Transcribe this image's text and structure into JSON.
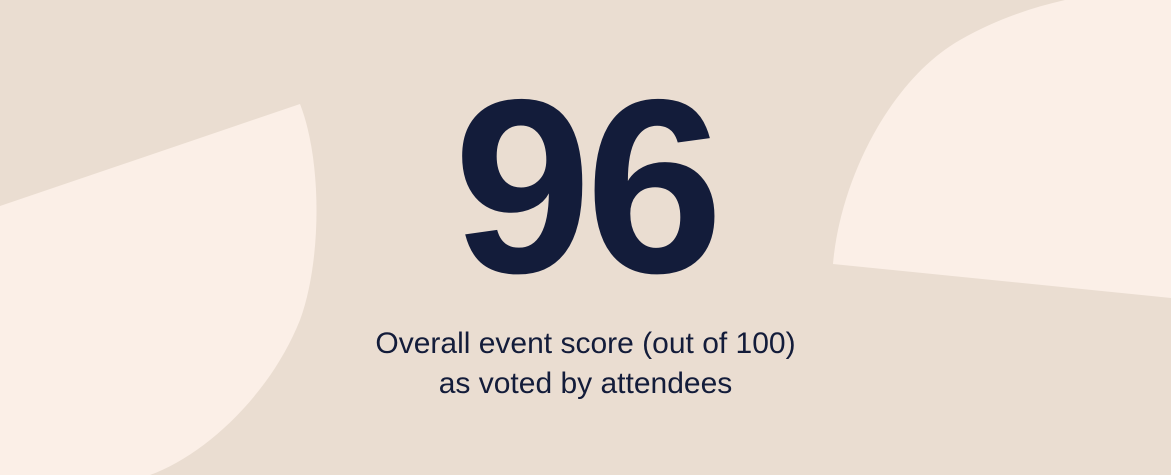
{
  "stat": {
    "value": "96",
    "caption_line1": "Overall event score (out of 100)",
    "caption_line2": "as voted by attendees"
  },
  "colors": {
    "background": "#EADDD1",
    "shape": "#FBEFE7",
    "text": "#131C3A"
  }
}
